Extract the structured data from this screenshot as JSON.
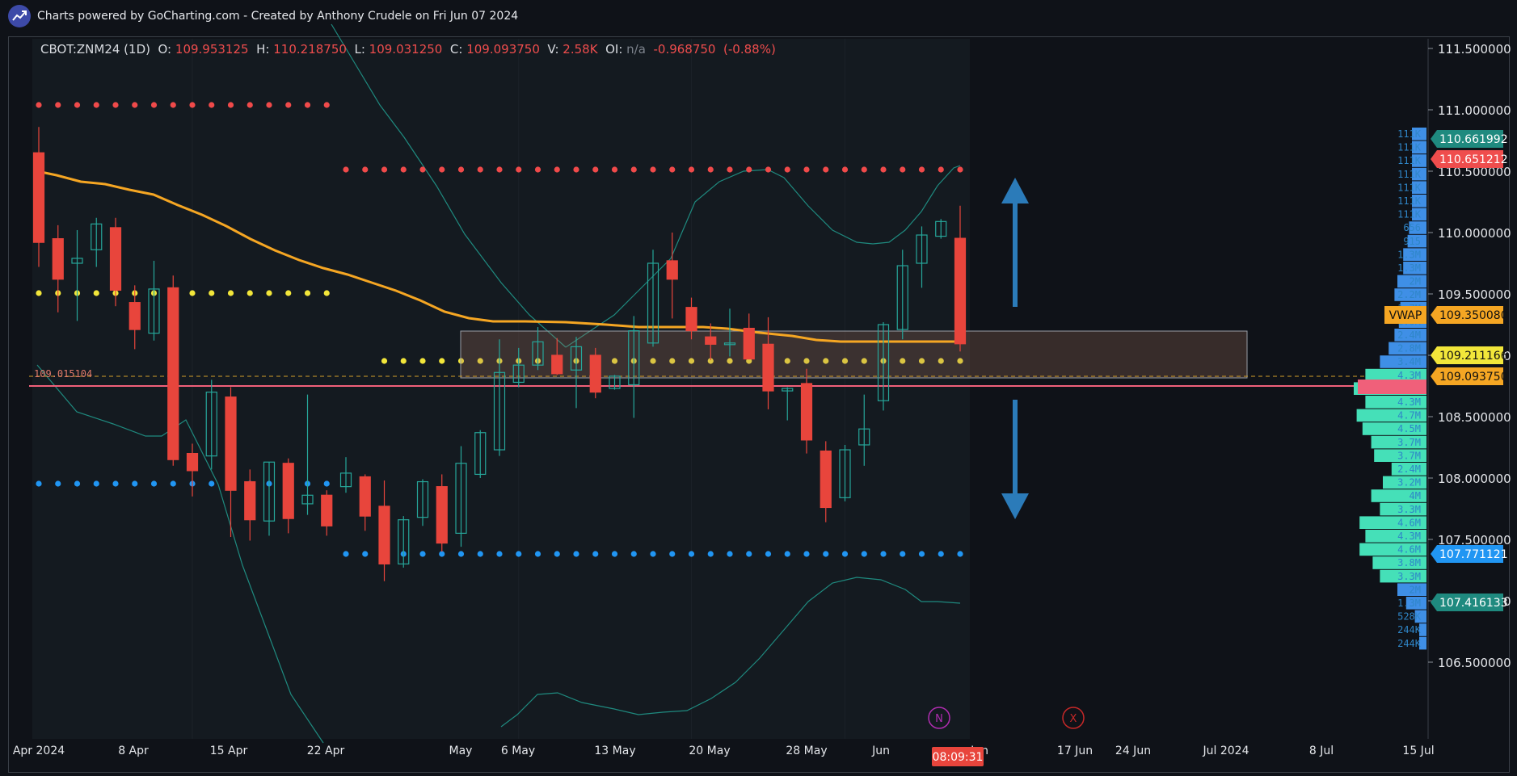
{
  "header": {
    "text": "Charts powered by GoCharting.com - Created by Anthony Crudele on Fri Jun 07 2024"
  },
  "ohlc": {
    "symbol": "CBOT:ZNM24 (1D)",
    "o_label": "O:",
    "o": "109.953125",
    "h_label": "H:",
    "h": "110.218750",
    "l_label": "L:",
    "l": "109.031250",
    "c_label": "C:",
    "c": "109.093750",
    "v_label": "V:",
    "v": "2.58K",
    "oi_label": "OI:",
    "oi": "n/a",
    "change": "-0.968750",
    "change_pct": "(-0.88%)"
  },
  "colors": {
    "up": "#26a69a",
    "down": "#e8453c",
    "vwap": "#f5a623",
    "bands": "#1f8a7f",
    "red_dots": "#f04a4a",
    "yellow_dots": "#f2e63a",
    "blue_dots": "#2196f3",
    "arrow": "#2b7bb9"
  },
  "chart_data": {
    "type": "candlestick",
    "title": "",
    "symbol": "CBOT:ZNM24",
    "interval": "1D",
    "ylim": [
      106.4,
      111.65
    ],
    "y_ticks": [
      "111.500000",
      "111.000000",
      "110.500000",
      "110.000000",
      "109.500000",
      "109.000000",
      "108.500000",
      "108.000000",
      "107.500000",
      "107.000000",
      "106.500000"
    ],
    "x_ticks": [
      "Apr 2024",
      "8 Apr",
      "15 Apr",
      "22 Apr",
      "May",
      "6 May",
      "13 May",
      "20 May",
      "28 May",
      "Jun",
      "Jun",
      "17 Jun",
      "24 Jun",
      "Jul 2024",
      "8 Jul",
      "15 Jul"
    ],
    "candles": [
      {
        "date": "2024-04-01",
        "o": 110.65,
        "h": 110.86,
        "l": 109.72,
        "c": 109.92
      },
      {
        "date": "2024-04-02",
        "o": 109.95,
        "h": 110.06,
        "l": 109.35,
        "c": 109.62
      },
      {
        "date": "2024-04-03",
        "o": 109.75,
        "h": 110.02,
        "l": 109.28,
        "c": 109.79
      },
      {
        "date": "2024-04-04",
        "o": 109.86,
        "h": 110.12,
        "l": 109.72,
        "c": 110.07
      },
      {
        "date": "2024-04-05",
        "o": 110.04,
        "h": 110.12,
        "l": 109.4,
        "c": 109.53
      },
      {
        "date": "2024-04-08",
        "o": 109.43,
        "h": 109.57,
        "l": 109.05,
        "c": 109.21
      },
      {
        "date": "2024-04-09",
        "o": 109.18,
        "h": 109.77,
        "l": 109.12,
        "c": 109.54
      },
      {
        "date": "2024-04-10",
        "o": 109.55,
        "h": 109.65,
        "l": 108.1,
        "c": 108.15
      },
      {
        "date": "2024-04-11",
        "o": 108.2,
        "h": 108.28,
        "l": 107.85,
        "c": 108.06
      },
      {
        "date": "2024-04-12",
        "o": 108.18,
        "h": 108.8,
        "l": 108.07,
        "c": 108.7
      },
      {
        "date": "2024-04-15",
        "o": 108.66,
        "h": 108.74,
        "l": 107.52,
        "c": 107.9
      },
      {
        "date": "2024-04-16",
        "o": 107.97,
        "h": 108.07,
        "l": 107.49,
        "c": 107.66
      },
      {
        "date": "2024-04-17",
        "o": 107.65,
        "h": 108.13,
        "l": 107.53,
        "c": 108.13
      },
      {
        "date": "2024-04-18",
        "o": 108.12,
        "h": 108.16,
        "l": 107.55,
        "c": 107.67
      },
      {
        "date": "2024-04-19",
        "o": 107.79,
        "h": 108.68,
        "l": 107.7,
        "c": 107.86
      },
      {
        "date": "2024-04-22",
        "o": 107.86,
        "h": 107.9,
        "l": 107.53,
        "c": 107.61
      },
      {
        "date": "2024-04-23",
        "o": 107.93,
        "h": 108.17,
        "l": 107.88,
        "c": 108.04
      },
      {
        "date": "2024-04-24",
        "o": 108.01,
        "h": 108.03,
        "l": 107.57,
        "c": 107.69
      },
      {
        "date": "2024-04-25",
        "o": 107.77,
        "h": 107.98,
        "l": 107.16,
        "c": 107.3
      },
      {
        "date": "2024-04-26",
        "o": 107.3,
        "h": 107.69,
        "l": 107.27,
        "c": 107.66
      },
      {
        "date": "2024-04-29",
        "o": 107.68,
        "h": 107.99,
        "l": 107.61,
        "c": 107.97
      },
      {
        "date": "2024-04-30",
        "o": 107.93,
        "h": 108.03,
        "l": 107.4,
        "c": 107.47
      },
      {
        "date": "2024-05-01",
        "o": 107.55,
        "h": 108.26,
        "l": 107.44,
        "c": 108.12
      },
      {
        "date": "2024-05-02",
        "o": 108.03,
        "h": 108.39,
        "l": 108.0,
        "c": 108.37
      },
      {
        "date": "2024-05-03",
        "o": 108.23,
        "h": 109.13,
        "l": 108.18,
        "c": 108.86
      },
      {
        "date": "2024-05-06",
        "o": 108.78,
        "h": 109.06,
        "l": 108.74,
        "c": 108.92
      },
      {
        "date": "2024-05-07",
        "o": 108.92,
        "h": 109.23,
        "l": 108.88,
        "c": 109.11
      },
      {
        "date": "2024-05-08",
        "o": 109.0,
        "h": 109.14,
        "l": 108.84,
        "c": 108.85
      },
      {
        "date": "2024-05-09",
        "o": 108.88,
        "h": 109.15,
        "l": 108.57,
        "c": 109.07
      },
      {
        "date": "2024-05-10",
        "o": 109.0,
        "h": 109.06,
        "l": 108.65,
        "c": 108.7
      },
      {
        "date": "2024-05-13",
        "o": 108.73,
        "h": 108.84,
        "l": 108.72,
        "c": 108.83
      },
      {
        "date": "2024-05-14",
        "o": 108.76,
        "h": 109.32,
        "l": 108.49,
        "c": 109.2
      },
      {
        "date": "2024-05-15",
        "o": 109.1,
        "h": 109.86,
        "l": 109.07,
        "c": 109.75
      },
      {
        "date": "2024-05-16",
        "o": 109.77,
        "h": 110.0,
        "l": 109.3,
        "c": 109.62
      },
      {
        "date": "2024-05-17",
        "o": 109.39,
        "h": 109.47,
        "l": 109.13,
        "c": 109.2
      },
      {
        "date": "2024-05-20",
        "o": 109.15,
        "h": 109.26,
        "l": 108.96,
        "c": 109.09
      },
      {
        "date": "2024-05-21",
        "o": 109.1,
        "h": 109.38,
        "l": 108.99,
        "c": 109.1
      },
      {
        "date": "2024-05-22",
        "o": 109.22,
        "h": 109.34,
        "l": 108.98,
        "c": 108.97
      },
      {
        "date": "2024-05-23",
        "o": 109.09,
        "h": 109.31,
        "l": 108.56,
        "c": 108.71
      },
      {
        "date": "2024-05-24",
        "o": 108.71,
        "h": 108.74,
        "l": 108.47,
        "c": 108.73
      },
      {
        "date": "2024-05-28",
        "o": 108.77,
        "h": 108.89,
        "l": 108.2,
        "c": 108.31
      },
      {
        "date": "2024-05-29",
        "o": 108.22,
        "h": 108.3,
        "l": 107.64,
        "c": 107.76
      },
      {
        "date": "2024-05-30",
        "o": 107.84,
        "h": 108.27,
        "l": 107.81,
        "c": 108.23
      },
      {
        "date": "2024-05-31",
        "o": 108.27,
        "h": 108.68,
        "l": 108.1,
        "c": 108.4
      },
      {
        "date": "2024-06-03",
        "o": 108.63,
        "h": 109.27,
        "l": 108.55,
        "c": 109.25
      },
      {
        "date": "2024-06-04",
        "o": 109.21,
        "h": 109.86,
        "l": 109.13,
        "c": 109.73
      },
      {
        "date": "2024-06-05",
        "o": 109.75,
        "h": 110.05,
        "l": 109.55,
        "c": 109.98
      },
      {
        "date": "2024-06-06",
        "o": 109.97,
        "h": 110.11,
        "l": 109.95,
        "c": 110.09
      },
      {
        "date": "2024-06-07",
        "o": 109.953125,
        "h": 110.21875,
        "l": 109.03125,
        "c": 109.09375
      }
    ],
    "vwap_label": "VWAP",
    "value_labels": [
      {
        "text": "110.661992",
        "value": 110.661992,
        "color": "#1f8a7f"
      },
      {
        "text": "110.651212",
        "value": 110.651212,
        "color": "#ef4d4d"
      },
      {
        "text": "109.350080",
        "value": 109.35008,
        "color": "#f5a623",
        "tag": "VWAP"
      },
      {
        "text": "109.211166",
        "value": 109.211166,
        "color": "#f2e63a"
      },
      {
        "text": "109.093750",
        "value": 109.09375,
        "color": "#f5a623"
      },
      {
        "text": "107.771121",
        "value": 107.771121,
        "color": "#2196f3"
      },
      {
        "text": "107.416133",
        "value": 107.416133,
        "color": "#1f8a7f"
      }
    ],
    "left_price_label": "109.015104",
    "time_label": "08:09:31",
    "markers": [
      {
        "text": "N",
        "color": "#b12db1"
      },
      {
        "text": "X",
        "color": "#c62828"
      }
    ],
    "volume_profile": [
      {
        "label": "111K",
        "v": 0.1
      },
      {
        "label": "111K",
        "v": 0.1
      },
      {
        "label": "111K",
        "v": 0.1
      },
      {
        "label": "111K",
        "v": 0.1
      },
      {
        "label": "111K",
        "v": 0.1
      },
      {
        "label": "111K",
        "v": 0.1
      },
      {
        "label": "111K",
        "v": 0.1
      },
      {
        "label": "656",
        "v": 0.12
      },
      {
        "label": "915",
        "v": 0.13
      },
      {
        "label": "1.3M",
        "v": 0.16
      },
      {
        "label": "1.3M",
        "v": 0.16
      },
      {
        "label": "2M",
        "v": 0.2
      },
      {
        "label": "2.2M",
        "v": 0.22
      },
      {
        "label": "1.7M",
        "v": 0.18
      },
      {
        "label": "1.9M",
        "v": 0.19
      },
      {
        "label": "2.4M",
        "v": 0.22
      },
      {
        "label": "2.8M",
        "v": 0.26
      },
      {
        "label": "3.4M",
        "v": 0.32
      },
      {
        "label": "4.3M",
        "v": 0.42
      },
      {
        "label": "4.7M",
        "v": 0.5
      },
      {
        "label": "4.3M",
        "v": 0.42
      },
      {
        "label": "4.7M",
        "v": 0.48
      },
      {
        "label": "4.5M",
        "v": 0.44
      },
      {
        "label": "3.7M",
        "v": 0.38
      },
      {
        "label": "3.7M",
        "v": 0.36
      },
      {
        "label": "2.4M",
        "v": 0.24
      },
      {
        "label": "3.2M",
        "v": 0.3
      },
      {
        "label": "4M",
        "v": 0.38
      },
      {
        "label": "3.3M",
        "v": 0.32
      },
      {
        "label": "4.6M",
        "v": 0.46
      },
      {
        "label": "4.3M",
        "v": 0.42
      },
      {
        "label": "4.6M",
        "v": 0.46
      },
      {
        "label": "3.8M",
        "v": 0.37
      },
      {
        "label": "3.3M",
        "v": 0.32
      },
      {
        "label": "2M",
        "v": 0.2
      },
      {
        "label": "1.3M",
        "v": 0.14
      },
      {
        "label": "528K",
        "v": 0.08
      },
      {
        "label": "244K",
        "v": 0.05
      },
      {
        "label": "244K",
        "v": 0.05
      }
    ]
  }
}
